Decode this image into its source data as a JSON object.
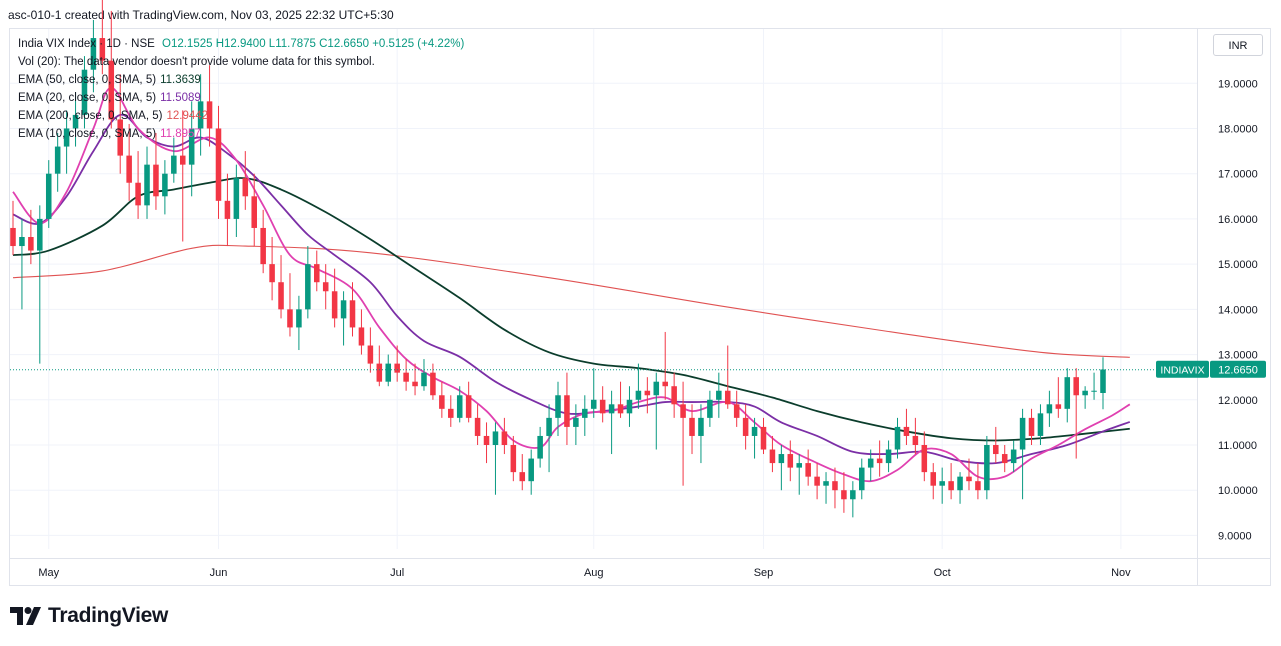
{
  "header": {
    "text": "asc-010-1 created with TradingView.com, Nov 03, 2025 22:32 UTC+5:30"
  },
  "legend": {
    "symbol_line": "India VIX Index · 1D · NSE",
    "ohlc": {
      "o": "O12.1525",
      "h": "H12.9400",
      "l": "L11.7875",
      "c": "C12.6650",
      "change": "+0.5125 (+4.22%)"
    },
    "vol_note": "Vol (20): The data vendor doesn't provide volume data for this symbol.",
    "indicators": [
      {
        "label": "EMA (50, close, 0, SMA, 5)",
        "value": "11.3639",
        "color": "#0b3d2c"
      },
      {
        "label": "EMA (20, close, 0, SMA, 5)",
        "value": "11.5089",
        "color": "#7b2fa6"
      },
      {
        "label": "EMA (200, close, 0, SMA, 5)",
        "value": "12.9442",
        "color": "#e05252"
      },
      {
        "label": "EMA (10, close, 0, SMA, 5)",
        "value": "11.8957",
        "color": "#e040b0"
      }
    ]
  },
  "currency_button": "INR",
  "footer": {
    "brand": "TradingView"
  },
  "colors": {
    "up": "#089981",
    "down": "#f23645",
    "grid": "#f0f3fa",
    "axis_text": "#131722"
  },
  "chart_data": {
    "type": "candlestick",
    "title": "India VIX Index · 1D · NSE",
    "ylim": [
      8.7,
      20.2
    ],
    "y_ticks": [
      "19.0000",
      "18.0000",
      "17.0000",
      "16.0000",
      "15.0000",
      "14.0000",
      "13.0000",
      "12.0000",
      "11.0000",
      "10.0000",
      "9.0000"
    ],
    "x_ticks": [
      {
        "label": "May",
        "index": 4
      },
      {
        "label": "Jun",
        "index": 23
      },
      {
        "label": "Jul",
        "index": 43
      },
      {
        "label": "Aug",
        "index": 65
      },
      {
        "label": "Sep",
        "index": 84
      },
      {
        "label": "Oct",
        "index": 104
      },
      {
        "label": "Nov",
        "index": 124
      }
    ],
    "last_price": {
      "label": "INDIAVIX",
      "value": "12.6650"
    },
    "candles": [
      [
        15.8,
        16.4,
        15.2,
        15.4
      ],
      [
        15.4,
        16.0,
        14.0,
        15.6
      ],
      [
        15.6,
        16.2,
        15.0,
        15.3
      ],
      [
        15.3,
        16.3,
        12.8,
        16.0
      ],
      [
        16.0,
        17.3,
        15.8,
        17.0
      ],
      [
        17.0,
        17.9,
        16.6,
        17.6
      ],
      [
        17.6,
        18.4,
        17.0,
        18.0
      ],
      [
        18.0,
        18.8,
        17.6,
        18.3
      ],
      [
        18.3,
        19.6,
        18.0,
        19.3
      ],
      [
        19.3,
        20.4,
        18.8,
        20.0
      ],
      [
        20.0,
        21.0,
        19.2,
        19.5
      ],
      [
        19.5,
        20.6,
        18.0,
        18.2
      ],
      [
        18.2,
        19.2,
        17.0,
        17.4
      ],
      [
        17.4,
        18.1,
        16.4,
        16.8
      ],
      [
        16.8,
        17.5,
        16.0,
        16.3
      ],
      [
        16.3,
        17.6,
        16.0,
        17.2
      ],
      [
        17.2,
        17.9,
        16.2,
        16.5
      ],
      [
        16.5,
        17.3,
        16.1,
        17.0
      ],
      [
        17.0,
        17.8,
        16.8,
        17.4
      ],
      [
        17.4,
        18.4,
        15.5,
        17.2
      ],
      [
        17.2,
        18.6,
        16.5,
        18.0
      ],
      [
        18.0,
        19.2,
        17.4,
        18.6
      ],
      [
        18.6,
        19.4,
        17.6,
        18.0
      ],
      [
        18.0,
        18.5,
        16.0,
        16.4
      ],
      [
        16.4,
        17.0,
        15.4,
        16.0
      ],
      [
        16.0,
        17.2,
        15.6,
        16.9
      ],
      [
        16.9,
        17.5,
        16.2,
        16.5
      ],
      [
        16.5,
        17.0,
        15.4,
        15.8
      ],
      [
        15.8,
        16.2,
        14.8,
        15.0
      ],
      [
        15.0,
        15.6,
        14.2,
        14.6
      ],
      [
        14.6,
        15.2,
        13.8,
        14.0
      ],
      [
        14.0,
        14.8,
        13.4,
        13.6
      ],
      [
        13.6,
        14.3,
        13.1,
        14.0
      ],
      [
        14.0,
        15.4,
        13.8,
        15.0
      ],
      [
        15.0,
        15.3,
        14.4,
        14.6
      ],
      [
        14.6,
        15.0,
        14.0,
        14.4
      ],
      [
        14.4,
        14.9,
        13.6,
        13.8
      ],
      [
        13.8,
        14.4,
        13.2,
        14.2
      ],
      [
        14.2,
        14.6,
        13.4,
        13.6
      ],
      [
        13.6,
        14.0,
        13.0,
        13.2
      ],
      [
        13.2,
        13.6,
        12.6,
        12.8
      ],
      [
        12.8,
        13.2,
        12.3,
        12.4
      ],
      [
        12.4,
        13.0,
        12.3,
        12.8
      ],
      [
        12.8,
        13.2,
        12.4,
        12.6
      ],
      [
        12.6,
        12.9,
        12.2,
        12.4
      ],
      [
        12.4,
        12.8,
        12.1,
        12.3
      ],
      [
        12.3,
        12.9,
        12.2,
        12.6
      ],
      [
        12.6,
        12.8,
        12.0,
        12.1
      ],
      [
        12.1,
        12.4,
        11.6,
        11.8
      ],
      [
        11.8,
        12.1,
        11.4,
        11.6
      ],
      [
        11.6,
        12.3,
        11.5,
        12.1
      ],
      [
        12.1,
        12.4,
        11.5,
        11.6
      ],
      [
        11.6,
        11.9,
        11.0,
        11.2
      ],
      [
        11.2,
        11.5,
        10.6,
        11.0
      ],
      [
        11.0,
        11.5,
        9.9,
        11.3
      ],
      [
        11.3,
        11.6,
        10.8,
        11.0
      ],
      [
        11.0,
        11.2,
        10.2,
        10.4
      ],
      [
        10.4,
        10.8,
        10.0,
        10.2
      ],
      [
        10.2,
        10.9,
        9.9,
        10.7
      ],
      [
        10.7,
        11.4,
        10.5,
        11.2
      ],
      [
        11.2,
        11.9,
        10.4,
        11.6
      ],
      [
        11.6,
        12.4,
        11.2,
        12.1
      ],
      [
        12.1,
        12.6,
        11.0,
        11.4
      ],
      [
        11.4,
        11.9,
        11.0,
        11.6
      ],
      [
        11.6,
        12.1,
        11.2,
        11.8
      ],
      [
        11.8,
        12.7,
        11.6,
        12.0
      ],
      [
        12.0,
        12.3,
        11.5,
        11.7
      ],
      [
        11.7,
        12.2,
        10.8,
        11.9
      ],
      [
        11.9,
        12.4,
        11.6,
        11.7
      ],
      [
        11.7,
        12.3,
        11.4,
        12.0
      ],
      [
        12.0,
        12.8,
        11.8,
        12.2
      ],
      [
        12.2,
        12.5,
        11.7,
        12.1
      ],
      [
        12.1,
        12.6,
        10.9,
        12.4
      ],
      [
        12.4,
        13.5,
        12.0,
        12.3
      ],
      [
        12.3,
        12.6,
        11.6,
        11.9
      ],
      [
        11.9,
        12.4,
        10.1,
        11.6
      ],
      [
        11.6,
        11.9,
        10.8,
        11.2
      ],
      [
        11.2,
        11.9,
        10.6,
        11.6
      ],
      [
        11.6,
        12.2,
        11.4,
        12.0
      ],
      [
        12.0,
        12.6,
        11.6,
        12.2
      ],
      [
        12.2,
        13.2,
        11.8,
        11.9
      ],
      [
        11.9,
        12.2,
        11.4,
        11.6
      ],
      [
        11.6,
        11.9,
        10.9,
        11.2
      ],
      [
        11.2,
        11.6,
        10.7,
        11.4
      ],
      [
        11.4,
        11.6,
        10.8,
        10.9
      ],
      [
        10.9,
        11.2,
        10.4,
        10.6
      ],
      [
        10.6,
        11.0,
        10.0,
        10.8
      ],
      [
        10.8,
        11.1,
        10.2,
        10.5
      ],
      [
        10.5,
        10.8,
        9.9,
        10.6
      ],
      [
        10.6,
        10.9,
        10.1,
        10.3
      ],
      [
        10.3,
        10.6,
        9.8,
        10.1
      ],
      [
        10.1,
        10.4,
        9.7,
        10.2
      ],
      [
        10.2,
        10.5,
        9.6,
        10.0
      ],
      [
        10.0,
        10.4,
        9.5,
        9.8
      ],
      [
        9.8,
        10.2,
        9.4,
        10.0
      ],
      [
        10.0,
        10.7,
        9.8,
        10.5
      ],
      [
        10.5,
        10.9,
        10.2,
        10.7
      ],
      [
        10.7,
        11.1,
        10.3,
        10.6
      ],
      [
        10.6,
        11.1,
        10.4,
        10.9
      ],
      [
        10.9,
        11.6,
        10.7,
        11.4
      ],
      [
        11.4,
        11.8,
        11.0,
        11.2
      ],
      [
        11.2,
        11.6,
        10.8,
        11.0
      ],
      [
        11.0,
        11.3,
        10.2,
        10.4
      ],
      [
        10.4,
        10.6,
        9.8,
        10.1
      ],
      [
        10.1,
        10.5,
        9.7,
        10.2
      ],
      [
        10.2,
        10.6,
        9.8,
        10.0
      ],
      [
        10.0,
        10.4,
        9.7,
        10.3
      ],
      [
        10.3,
        10.7,
        10.0,
        10.2
      ],
      [
        10.2,
        10.6,
        9.8,
        10.0
      ],
      [
        10.0,
        11.2,
        9.8,
        11.0
      ],
      [
        11.0,
        11.4,
        10.6,
        10.8
      ],
      [
        10.8,
        11.0,
        10.4,
        10.6
      ],
      [
        10.6,
        11.1,
        10.4,
        10.9
      ],
      [
        10.9,
        11.8,
        9.8,
        11.6
      ],
      [
        11.6,
        11.8,
        11.0,
        11.2
      ],
      [
        11.2,
        11.9,
        11.0,
        11.7
      ],
      [
        11.7,
        12.2,
        11.4,
        11.9
      ],
      [
        11.9,
        12.5,
        11.6,
        11.8
      ],
      [
        11.8,
        12.7,
        11.5,
        12.5
      ],
      [
        12.5,
        12.7,
        10.7,
        12.1
      ],
      [
        12.1,
        12.3,
        11.8,
        12.2
      ],
      [
        12.2,
        12.6,
        12.0,
        12.2
      ],
      [
        12.15,
        12.94,
        11.79,
        12.67
      ]
    ],
    "ema_lines": [
      {
        "name": "EMA 200",
        "color": "#e05252",
        "anchors": [
          [
            0,
            14.7
          ],
          [
            10,
            14.85
          ],
          [
            20,
            15.35
          ],
          [
            26,
            15.4
          ],
          [
            40,
            15.25
          ],
          [
            60,
            14.7
          ],
          [
            80,
            14.05
          ],
          [
            100,
            13.45
          ],
          [
            115,
            13.05
          ],
          [
            125,
            12.94
          ]
        ]
      },
      {
        "name": "EMA 50",
        "color": "#0b3d2c",
        "anchors": [
          [
            0,
            15.2
          ],
          [
            4,
            15.3
          ],
          [
            10,
            15.85
          ],
          [
            14,
            16.5
          ],
          [
            18,
            16.65
          ],
          [
            22,
            16.8
          ],
          [
            26,
            16.9
          ],
          [
            30,
            16.65
          ],
          [
            35,
            16.15
          ],
          [
            40,
            15.55
          ],
          [
            45,
            14.9
          ],
          [
            50,
            14.25
          ],
          [
            55,
            13.55
          ],
          [
            60,
            13.05
          ],
          [
            65,
            12.8
          ],
          [
            70,
            12.7
          ],
          [
            75,
            12.55
          ],
          [
            80,
            12.3
          ],
          [
            85,
            12.05
          ],
          [
            90,
            11.75
          ],
          [
            95,
            11.5
          ],
          [
            100,
            11.3
          ],
          [
            105,
            11.15
          ],
          [
            110,
            11.1
          ],
          [
            115,
            11.15
          ],
          [
            120,
            11.25
          ],
          [
            125,
            11.36
          ]
        ]
      },
      {
        "name": "EMA 20",
        "color": "#7b2fa6",
        "anchors": [
          [
            0,
            16.1
          ],
          [
            3,
            15.9
          ],
          [
            6,
            16.5
          ],
          [
            9,
            17.5
          ],
          [
            12,
            18.3
          ],
          [
            15,
            17.8
          ],
          [
            18,
            17.6
          ],
          [
            21,
            17.8
          ],
          [
            24,
            17.45
          ],
          [
            27,
            16.95
          ],
          [
            30,
            16.3
          ],
          [
            33,
            15.65
          ],
          [
            36,
            15.2
          ],
          [
            40,
            14.6
          ],
          [
            43,
            13.85
          ],
          [
            46,
            13.3
          ],
          [
            50,
            12.95
          ],
          [
            54,
            12.4
          ],
          [
            58,
            12.0
          ],
          [
            62,
            11.7
          ],
          [
            66,
            11.75
          ],
          [
            70,
            11.85
          ],
          [
            73,
            11.95
          ],
          [
            76,
            11.95
          ],
          [
            80,
            11.95
          ],
          [
            83,
            11.85
          ],
          [
            86,
            11.5
          ],
          [
            90,
            11.2
          ],
          [
            94,
            10.85
          ],
          [
            98,
            10.8
          ],
          [
            102,
            10.85
          ],
          [
            106,
            10.65
          ],
          [
            110,
            10.6
          ],
          [
            114,
            10.8
          ],
          [
            118,
            11.0
          ],
          [
            122,
            11.3
          ],
          [
            125,
            11.51
          ]
        ]
      },
      {
        "name": "EMA 10",
        "color": "#e040b0",
        "anchors": [
          [
            0,
            16.6
          ],
          [
            3,
            15.9
          ],
          [
            6,
            16.6
          ],
          [
            9,
            18.0
          ],
          [
            11,
            18.9
          ],
          [
            14,
            18.0
          ],
          [
            18,
            17.5
          ],
          [
            22,
            17.8
          ],
          [
            25,
            17.3
          ],
          [
            28,
            16.3
          ],
          [
            31,
            15.2
          ],
          [
            34,
            14.9
          ],
          [
            38,
            14.45
          ],
          [
            41,
            13.6
          ],
          [
            44,
            12.9
          ],
          [
            47,
            12.5
          ],
          [
            50,
            12.2
          ],
          [
            53,
            11.75
          ],
          [
            56,
            11.1
          ],
          [
            59,
            10.95
          ],
          [
            61,
            11.4
          ],
          [
            64,
            11.7
          ],
          [
            67,
            11.75
          ],
          [
            70,
            11.95
          ],
          [
            73,
            12.05
          ],
          [
            76,
            11.75
          ],
          [
            80,
            11.95
          ],
          [
            83,
            11.5
          ],
          [
            86,
            11.0
          ],
          [
            90,
            10.6
          ],
          [
            93,
            10.35
          ],
          [
            96,
            10.2
          ],
          [
            99,
            10.45
          ],
          [
            102,
            10.9
          ],
          [
            105,
            10.8
          ],
          [
            108,
            10.3
          ],
          [
            111,
            10.3
          ],
          [
            114,
            10.7
          ],
          [
            117,
            11.0
          ],
          [
            120,
            11.35
          ],
          [
            123,
            11.65
          ],
          [
            125,
            11.9
          ]
        ]
      }
    ]
  }
}
